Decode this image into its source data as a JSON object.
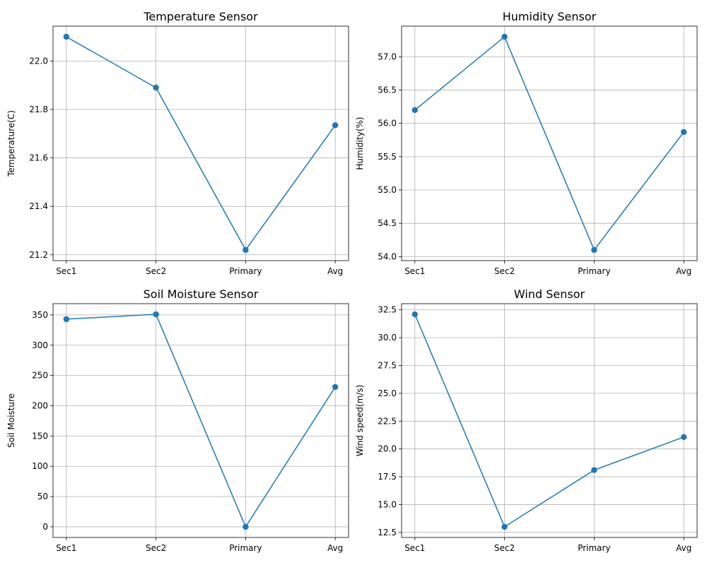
{
  "chart_data": [
    {
      "type": "line",
      "title": "Temperature Sensor",
      "ylabel": "Temperature(C)",
      "xlabel": "",
      "categories": [
        "Sec1",
        "Sec2",
        "Primary",
        "Avg"
      ],
      "values": [
        22.1,
        21.89,
        21.22,
        21.735
      ],
      "yticks": [
        21.2,
        21.4,
        21.6,
        21.8,
        22.0
      ],
      "ytick_labels": [
        "21.2",
        "21.4",
        "21.6",
        "21.8",
        "22.0"
      ],
      "ylim": [
        21.176,
        22.144
      ],
      "grid": true,
      "marker": "circle",
      "color": "#1f77b4"
    },
    {
      "type": "line",
      "title": "Humidity Sensor",
      "ylabel": "Humidity(%)",
      "xlabel": "",
      "categories": [
        "Sec1",
        "Sec2",
        "Primary",
        "Avg"
      ],
      "values": [
        56.2,
        57.3,
        54.1,
        55.87
      ],
      "yticks": [
        54.0,
        54.5,
        55.0,
        55.5,
        56.0,
        56.5,
        57.0
      ],
      "ytick_labels": [
        "54.0",
        "54.5",
        "55.0",
        "55.5",
        "56.0",
        "56.5",
        "57.0"
      ],
      "ylim": [
        53.94,
        57.46
      ],
      "grid": true,
      "marker": "circle",
      "color": "#1f77b4"
    },
    {
      "type": "line",
      "title": "Soil Moisture Sensor",
      "ylabel": "Soil Moisture",
      "xlabel": "",
      "categories": [
        "Sec1",
        "Sec2",
        "Primary",
        "Avg"
      ],
      "values": [
        343,
        351,
        0,
        231
      ],
      "yticks": [
        0,
        50,
        100,
        150,
        200,
        250,
        300,
        350
      ],
      "ytick_labels": [
        "0",
        "50",
        "100",
        "150",
        "200",
        "250",
        "300",
        "350"
      ],
      "ylim": [
        -17.55,
        368.55
      ],
      "grid": true,
      "marker": "circle",
      "color": "#1f77b4"
    },
    {
      "type": "line",
      "title": "Wind Sensor",
      "ylabel": "Wind speed(m/s)",
      "xlabel": "",
      "categories": [
        "Sec1",
        "Sec2",
        "Primary",
        "Avg"
      ],
      "values": [
        32.1,
        13.0,
        18.1,
        21.07
      ],
      "yticks": [
        12.5,
        15.0,
        17.5,
        20.0,
        22.5,
        25.0,
        27.5,
        30.0,
        32.5
      ],
      "ytick_labels": [
        "12.5",
        "15.0",
        "17.5",
        "20.0",
        "22.5",
        "25.0",
        "27.5",
        "30.0",
        "32.5"
      ],
      "ylim": [
        12.045,
        33.055
      ],
      "grid": true,
      "marker": "circle",
      "color": "#1f77b4"
    }
  ]
}
